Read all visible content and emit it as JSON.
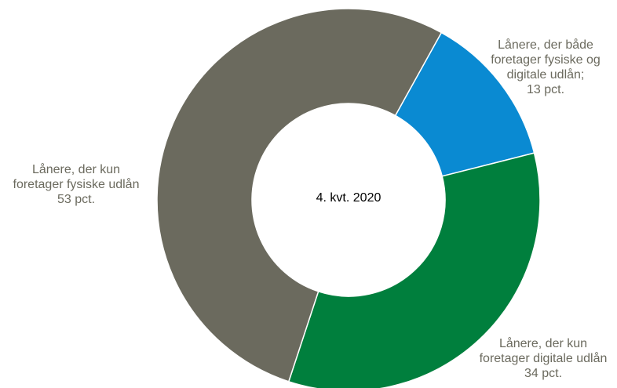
{
  "chart_data": {
    "type": "pie",
    "center_label": "4. kvt. 2020",
    "slices": [
      {
        "label_lines": [
          "Lånere, der både",
          "foretager fysiske og",
          "digitale udlån;",
          "13 pct."
        ],
        "value": 13,
        "color": "#0a8ad2"
      },
      {
        "label_lines": [
          "Lånere, der kun",
          "foretager digitale udlån",
          "34 pct."
        ],
        "value": 34,
        "color": "#007f3d"
      },
      {
        "label_lines": [
          "Lånere, der kun",
          "foretager fysiske udlån",
          "53 pct."
        ],
        "value": 53,
        "color": "#6b6a5e"
      }
    ],
    "slice_border_color": "#ffffff"
  }
}
